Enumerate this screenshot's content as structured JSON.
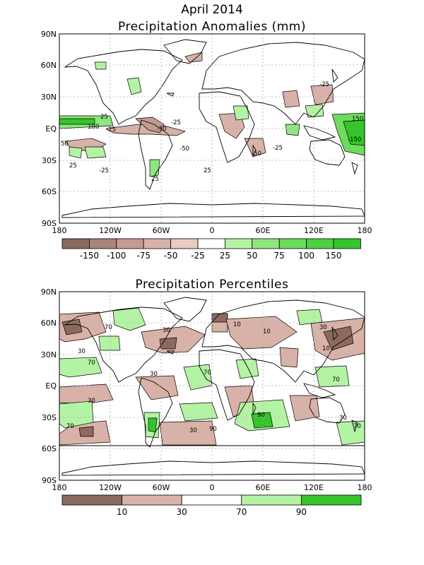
{
  "figure_title": "April 2014",
  "panels": [
    {
      "id": "anomalies",
      "title": "Precipitation Anomalies (mm)",
      "lat_ticks": [
        "90N",
        "60N",
        "30N",
        "EQ",
        "30S",
        "60S",
        "90S"
      ],
      "lon_ticks": [
        "180",
        "120W",
        "60W",
        "0",
        "60E",
        "120E",
        "180"
      ],
      "colorbar": {
        "colors": [
          "#8c6a5e",
          "#a98478",
          "#c49b90",
          "#d8b2a8",
          "#e8cbc4",
          "#ffffff",
          "#b4f3a4",
          "#8ee67f",
          "#6cdc5c",
          "#4ed13e",
          "#35c42a"
        ],
        "labels": [
          "-150",
          "-100",
          "-75",
          "-50",
          "-25",
          "25",
          "50",
          "75",
          "100",
          "150"
        ]
      },
      "contour_labels": [
        "25",
        "-25",
        "100",
        "-50",
        "-25",
        "25",
        "-25",
        "50",
        "-150",
        "150",
        "-25",
        "-50",
        "-50",
        "-25",
        "25",
        "25"
      ]
    },
    {
      "id": "percentiles",
      "title": "Precipitation Percentiles",
      "lat_ticks": [
        "90N",
        "60N",
        "30N",
        "EQ",
        "30S",
        "60S",
        "90S"
      ],
      "lon_ticks": [
        "180",
        "120W",
        "60W",
        "0",
        "60E",
        "120E",
        "180"
      ],
      "colorbar": {
        "colors": [
          "#8c6a5e",
          "#d8b2a8",
          "#ffffff",
          "#b4f3a4",
          "#35c42a"
        ],
        "labels": [
          "10",
          "30",
          "70",
          "90"
        ]
      },
      "contour_labels": [
        "70",
        "30",
        "10",
        "30",
        "70",
        "10",
        "30",
        "30",
        "70",
        "70",
        "30",
        "90",
        "30",
        "90",
        "70",
        "30",
        "10",
        "70"
      ]
    }
  ]
}
